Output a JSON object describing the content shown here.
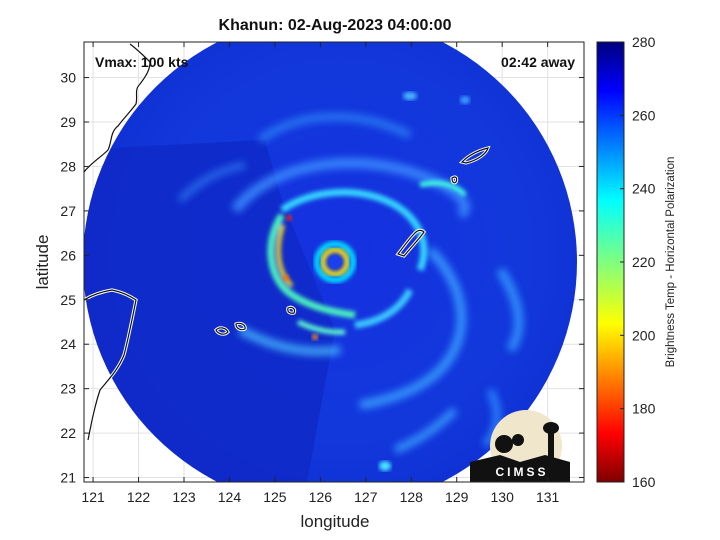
{
  "chart_data": {
    "type": "heatmap",
    "title": "Khanun: 02-Aug-2023 04:00:00",
    "xlabel": "longitude",
    "ylabel": "latitude",
    "xlim": [
      120.8,
      131.8
    ],
    "ylim": [
      20.9,
      30.8
    ],
    "x_ticks": [
      121,
      122,
      123,
      124,
      125,
      126,
      127,
      128,
      129,
      130,
      131
    ],
    "y_ticks": [
      21,
      22,
      23,
      24,
      25,
      26,
      27,
      28,
      29,
      30
    ],
    "grid": true,
    "annotations": {
      "vmax": "Vmax: 100 kts",
      "time_offset": "02:42 away"
    },
    "storm_center": {
      "lon": 126.35,
      "lat": 25.95
    },
    "colorbar": {
      "label": "Brightness Temp - Horizontal Polarization",
      "range": [
        160,
        280
      ],
      "ticks": [
        160,
        180,
        200,
        220,
        240,
        260,
        280
      ],
      "colormap": "jet"
    },
    "logo": "CIMSS"
  }
}
